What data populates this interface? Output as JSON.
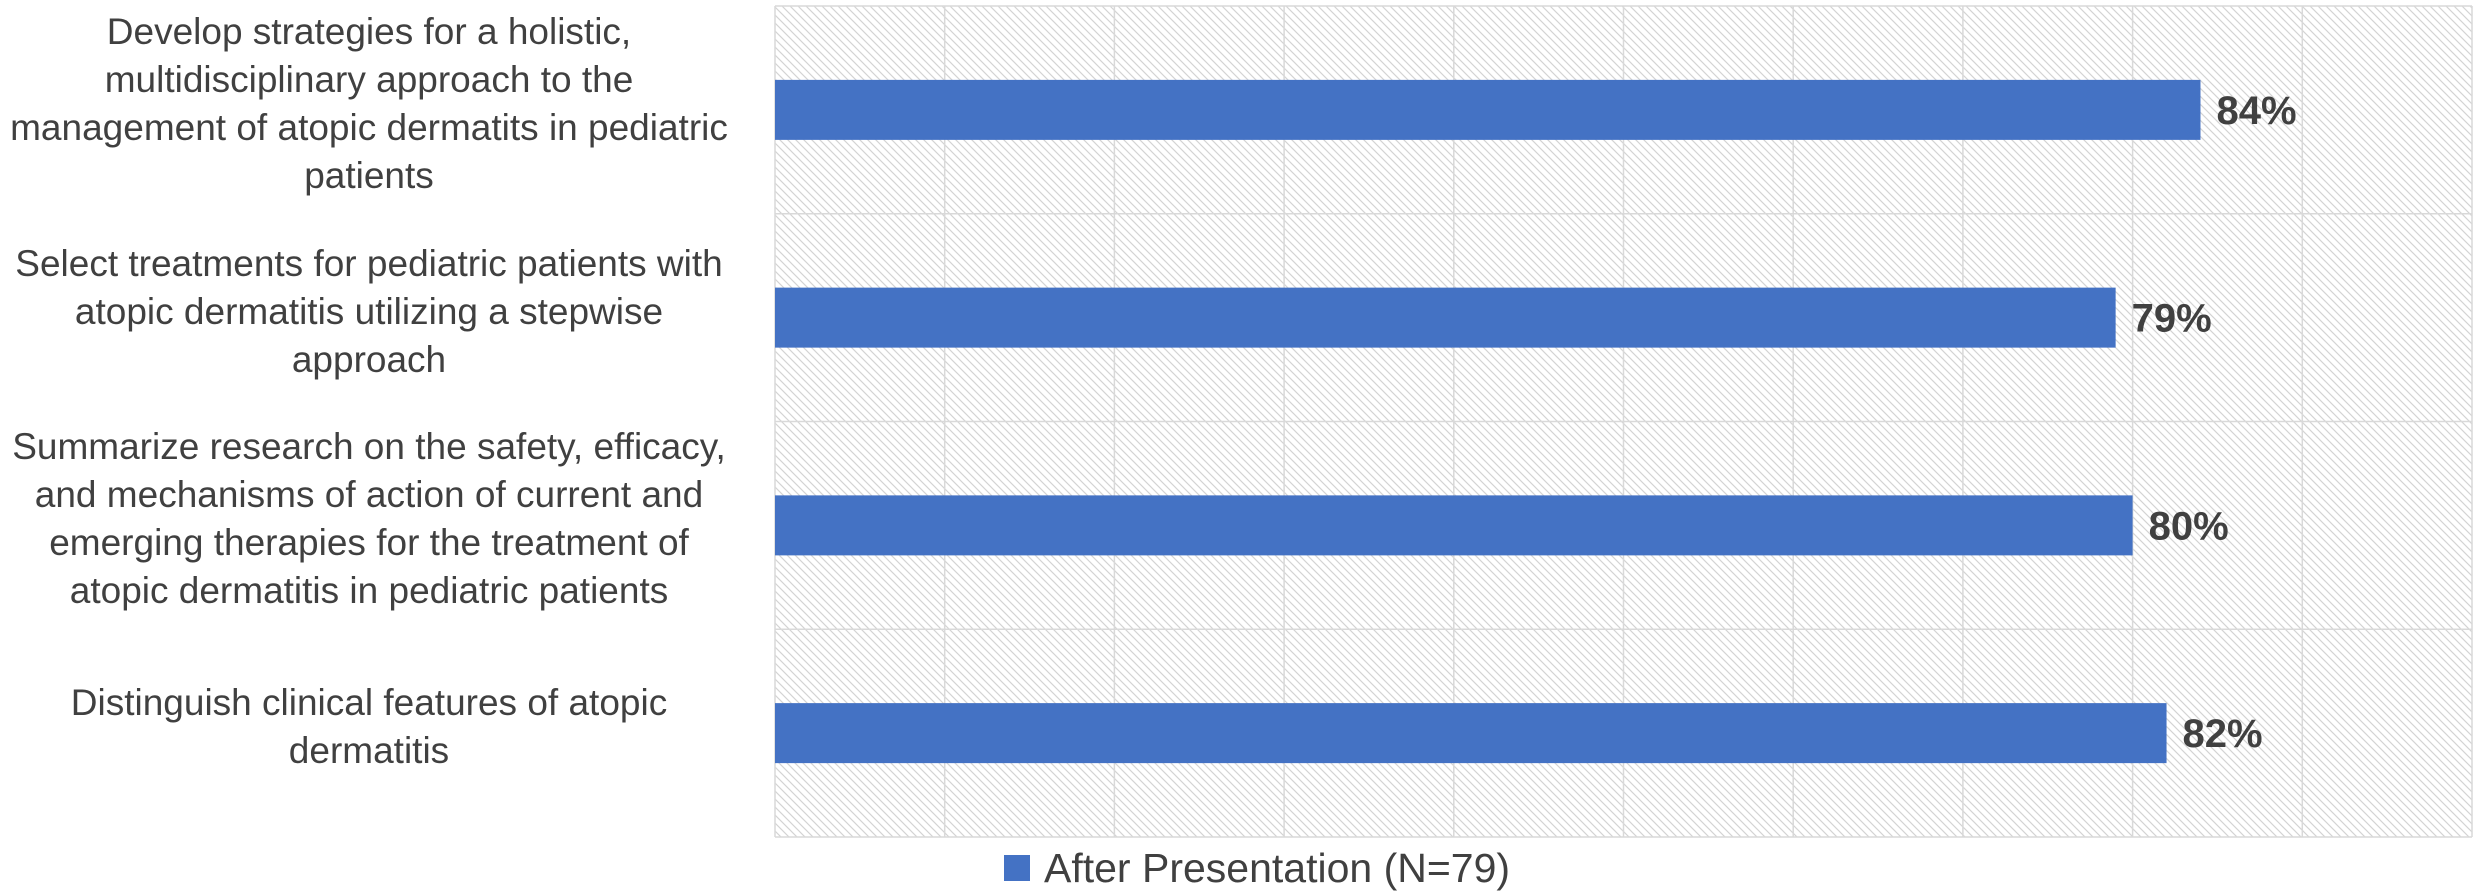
{
  "colors": {
    "bar": "#4472C4",
    "grid": "#d9d9d9",
    "hatch": "#d4d4d4",
    "label": "#404040"
  },
  "chart_data": {
    "type": "bar",
    "orientation": "horizontal",
    "categories": [
      "Develop strategies for a holistic, multidisciplinary approach to the management of atopic dermatits in pediatric patients",
      "Select treatments for pediatric patients with atopic dermatitis utilizing a stepwise approach",
      "Summarize research on the safety, efficacy, and mechanisms of action of current and emerging therapies for the treatment of atopic dermatitis in pediatric patients",
      "Distinguish clinical features of atopic dermatitis"
    ],
    "category_lines": [
      [
        "Develop strategies for a holistic,",
        "multidisciplinary approach to the",
        "management of atopic dermatits in pediatric",
        "patients"
      ],
      [
        "Select treatments for pediatric patients with",
        "atopic dermatitis utilizing a stepwise",
        "approach"
      ],
      [
        "Summarize research on the safety, efficacy,",
        "and mechanisms of action of current and",
        "emerging therapies for the treatment of",
        "atopic dermatitis in pediatric patients"
      ],
      [
        "Distinguish clinical features of atopic",
        "dermatitis"
      ]
    ],
    "series": [
      {
        "name": "After Presentation (N=79)",
        "values": [
          84,
          79,
          80,
          82
        ]
      }
    ],
    "data_labels": [
      "84%",
      "79%",
      "80%",
      "82%"
    ],
    "xlim": [
      0,
      100
    ],
    "grid": true,
    "legend_position": "bottom"
  }
}
